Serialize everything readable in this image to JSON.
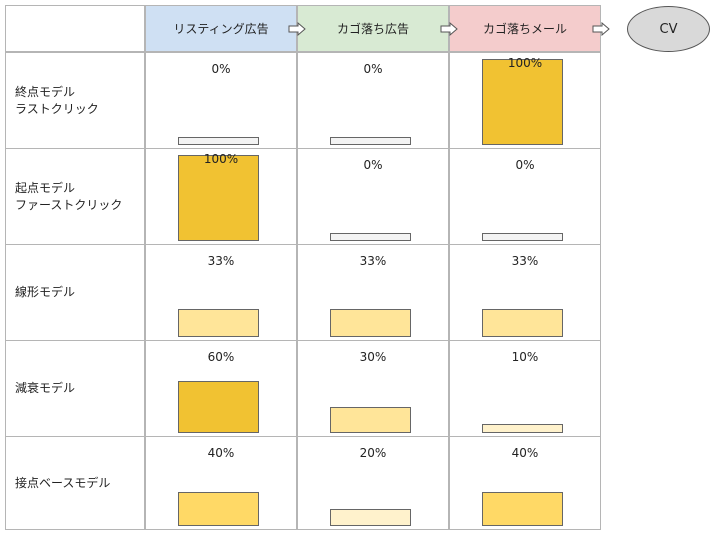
{
  "channels": [
    {
      "label": "リスティング広告",
      "color": "#cfe0f3"
    },
    {
      "label": "カゴ落ち広告",
      "color": "#d8ead3"
    },
    {
      "label": "カゴ落ちメール",
      "color": "#f4cccc"
    }
  ],
  "cv_label": "CV",
  "rows": [
    {
      "label_lines": [
        "終点モデル",
        "ラストクリック"
      ],
      "values": [
        0,
        0,
        100
      ],
      "pct_labels": [
        "0%",
        "0%",
        "100%"
      ],
      "bar_colors": [
        "#f3f3f3",
        "#f3f3f3",
        "#f1c232"
      ]
    },
    {
      "label_lines": [
        "起点モデル",
        "ファーストクリック"
      ],
      "values": [
        100,
        0,
        0
      ],
      "pct_labels": [
        "100%",
        "0%",
        "0%"
      ],
      "bar_colors": [
        "#f1c232",
        "#f3f3f3",
        "#f3f3f3"
      ]
    },
    {
      "label_lines": [
        "線形モデル"
      ],
      "values": [
        33,
        33,
        33
      ],
      "pct_labels": [
        "33%",
        "33%",
        "33%"
      ],
      "bar_colors": [
        "#ffe599",
        "#ffe599",
        "#ffe599"
      ]
    },
    {
      "label_lines": [
        "減衰モデル"
      ],
      "values": [
        60,
        30,
        10
      ],
      "pct_labels": [
        "60%",
        "30%",
        "10%"
      ],
      "bar_colors": [
        "#f1c232",
        "#ffe599",
        "#fff2cc"
      ]
    },
    {
      "label_lines": [
        "接点ベースモデル"
      ],
      "values": [
        40,
        20,
        40
      ],
      "pct_labels": [
        "40%",
        "20%",
        "40%"
      ],
      "bar_colors": [
        "#ffd966",
        "#fff2cc",
        "#ffd966"
      ]
    }
  ]
}
